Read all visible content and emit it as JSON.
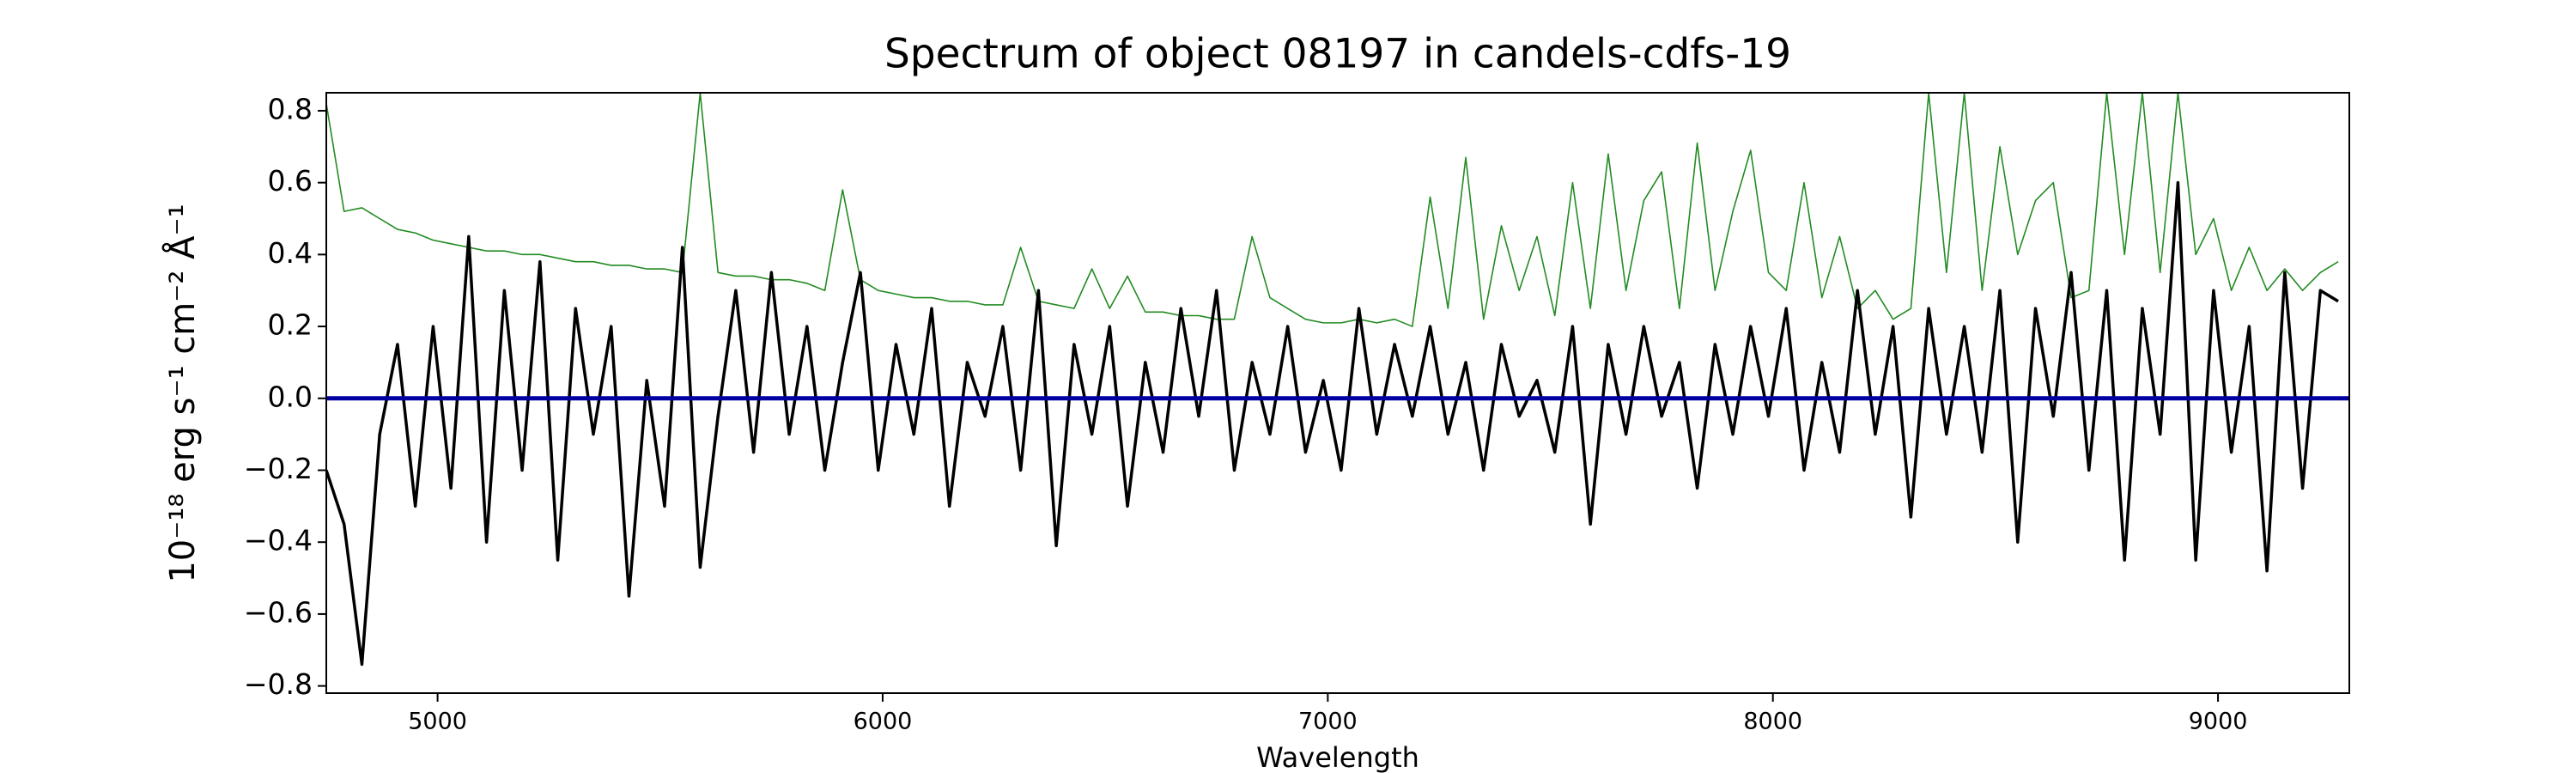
{
  "chart_data": {
    "type": "line",
    "title": "Spectrum of object 08197 in candels-cdfs-19",
    "xlabel": "Wavelength",
    "ylabel": "10⁻¹⁸ erg s⁻¹ cm⁻² Å⁻¹",
    "xlim": [
      4750,
      9295
    ],
    "ylim": [
      -0.82,
      0.85
    ],
    "xticks": [
      5000,
      6000,
      7000,
      8000,
      9000
    ],
    "yticks": [
      {
        "value": -0.8,
        "label": "−0.8"
      },
      {
        "value": -0.6,
        "label": "−0.6"
      },
      {
        "value": -0.4,
        "label": "−0.4"
      },
      {
        "value": -0.2,
        "label": "−0.2"
      },
      {
        "value": 0,
        "label": "0.0"
      },
      {
        "value": 0.2,
        "label": "0.2"
      },
      {
        "value": 0.4,
        "label": "0.4"
      },
      {
        "value": 0.6,
        "label": "0.6"
      },
      {
        "value": 0.8,
        "label": "0.8"
      }
    ],
    "grid": false,
    "x": [
      4750,
      4790,
      4830,
      4870,
      4910,
      4950,
      4990,
      5030,
      5070,
      5110,
      5150,
      5190,
      5230,
      5270,
      5310,
      5350,
      5390,
      5430,
      5470,
      5510,
      5550,
      5590,
      5630,
      5670,
      5710,
      5750,
      5790,
      5830,
      5870,
      5910,
      5950,
      5990,
      6030,
      6070,
      6110,
      6150,
      6190,
      6230,
      6270,
      6310,
      6350,
      6390,
      6430,
      6470,
      6510,
      6550,
      6590,
      6630,
      6670,
      6710,
      6750,
      6790,
      6830,
      6870,
      6910,
      6950,
      6990,
      7030,
      7070,
      7110,
      7150,
      7190,
      7230,
      7270,
      7310,
      7350,
      7390,
      7430,
      7470,
      7510,
      7550,
      7590,
      7630,
      7670,
      7710,
      7750,
      7790,
      7830,
      7870,
      7910,
      7950,
      7990,
      8030,
      8070,
      8110,
      8150,
      8190,
      8230,
      8270,
      8310,
      8350,
      8390,
      8430,
      8470,
      8510,
      8550,
      8590,
      8630,
      8670,
      8710,
      8750,
      8790,
      8830,
      8870,
      8910,
      8950,
      8990,
      9030,
      9070,
      9110,
      9150,
      9190,
      9230,
      9270
    ],
    "series": [
      {
        "color": "#228b22",
        "width": 1.6,
        "values": [
          0.82,
          0.52,
          0.53,
          0.5,
          0.47,
          0.46,
          0.44,
          0.43,
          0.42,
          0.41,
          0.41,
          0.4,
          0.4,
          0.39,
          0.38,
          0.38,
          0.37,
          0.37,
          0.36,
          0.36,
          0.35,
          0.85,
          0.35,
          0.34,
          0.34,
          0.33,
          0.33,
          0.32,
          0.3,
          0.58,
          0.33,
          0.3,
          0.29,
          0.28,
          0.28,
          0.27,
          0.27,
          0.26,
          0.26,
          0.42,
          0.27,
          0.26,
          0.25,
          0.36,
          0.25,
          0.34,
          0.24,
          0.24,
          0.23,
          0.23,
          0.22,
          0.22,
          0.45,
          0.28,
          0.25,
          0.22,
          0.21,
          0.21,
          0.22,
          0.21,
          0.22,
          0.2,
          0.56,
          0.25,
          0.67,
          0.22,
          0.48,
          0.3,
          0.45,
          0.23,
          0.6,
          0.25,
          0.68,
          0.3,
          0.55,
          0.63,
          0.25,
          0.71,
          0.3,
          0.52,
          0.69,
          0.35,
          0.3,
          0.6,
          0.28,
          0.45,
          0.25,
          0.3,
          0.22,
          0.25,
          0.85,
          0.35,
          0.85,
          0.3,
          0.7,
          0.4,
          0.55,
          0.6,
          0.28,
          0.3,
          0.85,
          0.4,
          0.85,
          0.35,
          0.85,
          0.4,
          0.5,
          0.3,
          0.42,
          0.3,
          0.36,
          0.3,
          0.35,
          0.38
        ]
      },
      {
        "color": "#000000",
        "width": 3.5,
        "values": [
          -0.2,
          -0.35,
          -0.74,
          -0.1,
          0.15,
          -0.3,
          0.2,
          -0.25,
          0.45,
          -0.4,
          0.3,
          -0.2,
          0.38,
          -0.45,
          0.25,
          -0.1,
          0.2,
          -0.55,
          0.05,
          -0.3,
          0.42,
          -0.47,
          -0.05,
          0.3,
          -0.15,
          0.35,
          -0.1,
          0.2,
          -0.2,
          0.1,
          0.35,
          -0.2,
          0.15,
          -0.1,
          0.25,
          -0.3,
          0.1,
          -0.05,
          0.2,
          -0.2,
          0.3,
          -0.41,
          0.15,
          -0.1,
          0.2,
          -0.3,
          0.1,
          -0.15,
          0.25,
          -0.05,
          0.3,
          -0.2,
          0.1,
          -0.1,
          0.2,
          -0.15,
          0.05,
          -0.2,
          0.25,
          -0.1,
          0.15,
          -0.05,
          0.2,
          -0.1,
          0.1,
          -0.2,
          0.15,
          -0.05,
          0.05,
          -0.15,
          0.2,
          -0.35,
          0.15,
          -0.1,
          0.2,
          -0.05,
          0.1,
          -0.25,
          0.15,
          -0.1,
          0.2,
          -0.05,
          0.25,
          -0.2,
          0.1,
          -0.15,
          0.3,
          -0.1,
          0.2,
          -0.33,
          0.25,
          -0.1,
          0.2,
          -0.15,
          0.3,
          -0.4,
          0.25,
          -0.05,
          0.35,
          -0.2,
          0.3,
          -0.45,
          0.25,
          -0.1,
          0.6,
          -0.45,
          0.3,
          -0.15,
          0.2,
          -0.48,
          0.35,
          -0.25,
          0.3,
          0.27
        ]
      },
      {
        "color": "#0000a0",
        "width": 5,
        "x": [
          4750,
          9295
        ],
        "values": [
          0,
          0
        ]
      }
    ]
  }
}
